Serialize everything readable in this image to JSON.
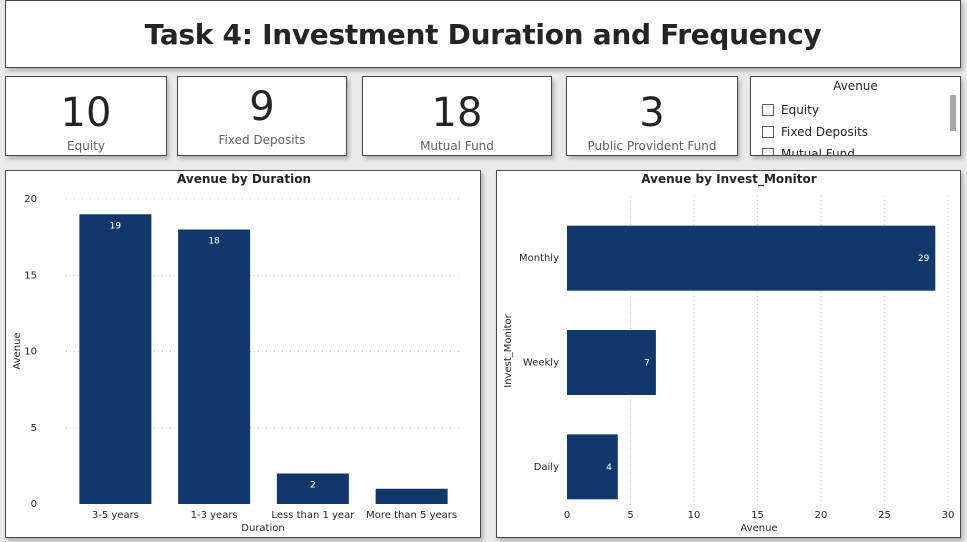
{
  "page": {
    "title": "Task 4: Investment Duration and Frequency"
  },
  "kpis": [
    {
      "value": "10",
      "label": "Equity"
    },
    {
      "value": "9",
      "label": "Fixed Deposits"
    },
    {
      "value": "18",
      "label": "Mutual Fund"
    },
    {
      "value": "3",
      "label": "Public Provident Fund"
    }
  ],
  "slicer": {
    "title": "Avenue",
    "options": [
      "Equity",
      "Fixed Deposits",
      "Mutual Fund"
    ]
  },
  "colors": {
    "bar": "#12386b",
    "grid": "#c8c8c8"
  },
  "chart_data": [
    {
      "type": "bar",
      "orientation": "vertical",
      "title": "Avenue by Duration",
      "xlabel": "Duration",
      "ylabel": "Avenue",
      "categories": [
        "3-5 years",
        "1-3 years",
        "Less than 1 year",
        "More than 5 years"
      ],
      "values": [
        19,
        18,
        2,
        1
      ],
      "data_labels": [
        "19",
        "18",
        "2",
        ""
      ],
      "ylim": [
        0,
        20
      ],
      "yticks": [
        "0",
        "5",
        "10",
        "15",
        "20"
      ],
      "grid": true
    },
    {
      "type": "bar",
      "orientation": "horizontal",
      "title": "Avenue by Invest_Monitor",
      "xlabel": "Avenue",
      "ylabel": "Invest_Monitor",
      "categories": [
        "Monthly",
        "Weekly",
        "Daily"
      ],
      "values": [
        29,
        7,
        4
      ],
      "data_labels": [
        "29",
        "7",
        "4"
      ],
      "xlim": [
        0,
        30
      ],
      "xticks": [
        "0",
        "5",
        "10",
        "15",
        "20",
        "25",
        "30"
      ],
      "grid": true
    }
  ]
}
